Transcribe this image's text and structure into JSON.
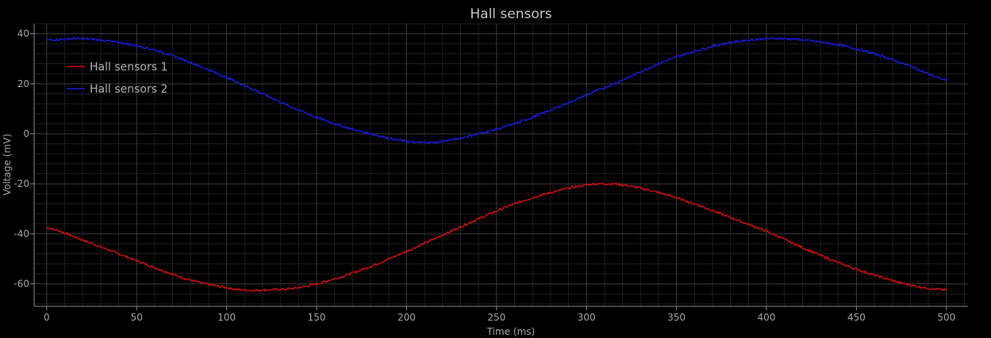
{
  "chart_data": {
    "type": "line",
    "title": "Hall sensors",
    "xlabel": "Time (ms)",
    "ylabel": "Voltage (mV)",
    "xlim": [
      -7,
      512
    ],
    "ylim": [
      -69,
      44
    ],
    "xticks": [
      0,
      50,
      100,
      150,
      200,
      250,
      300,
      350,
      400,
      450,
      500
    ],
    "yticks": [
      -60,
      -40,
      -20,
      0,
      20,
      40
    ],
    "grid": true,
    "legend": "top-left",
    "background": "#000000",
    "series": [
      {
        "name": "Hall sensors 1",
        "color": "#d01010",
        "x": [
          0,
          20,
          40,
          60,
          80,
          100,
          110,
          120,
          140,
          160,
          180,
          200,
          220,
          240,
          260,
          280,
          300,
          310,
          320,
          340,
          360,
          380,
          400,
          420,
          440,
          460,
          480,
          500
        ],
        "y": [
          -37.5,
          -42.5,
          -48,
          -53.5,
          -58.5,
          -61.5,
          -62.5,
          -62.5,
          -61.5,
          -58,
          -53,
          -47,
          -40.5,
          -34,
          -28,
          -23.5,
          -20.5,
          -20,
          -20.5,
          -23.5,
          -28,
          -33.5,
          -39,
          -45.5,
          -51.5,
          -56.5,
          -60.5,
          -62.5
        ]
      },
      {
        "name": "Hall sensors 2",
        "color": "#1a1ad8",
        "x": [
          0,
          20,
          40,
          60,
          80,
          100,
          120,
          140,
          160,
          180,
          200,
          210,
          220,
          240,
          260,
          280,
          300,
          320,
          340,
          360,
          380,
          400,
          410,
          420,
          440,
          460,
          480,
          500
        ],
        "y": [
          37.5,
          38,
          36.5,
          33.5,
          28.5,
          22.5,
          16,
          9.5,
          4,
          0,
          -3,
          -3.5,
          -3,
          0,
          4,
          9.5,
          15.5,
          21.5,
          28,
          33,
          36.5,
          38,
          38,
          37.5,
          35.5,
          32,
          27,
          21.5
        ]
      }
    ]
  }
}
